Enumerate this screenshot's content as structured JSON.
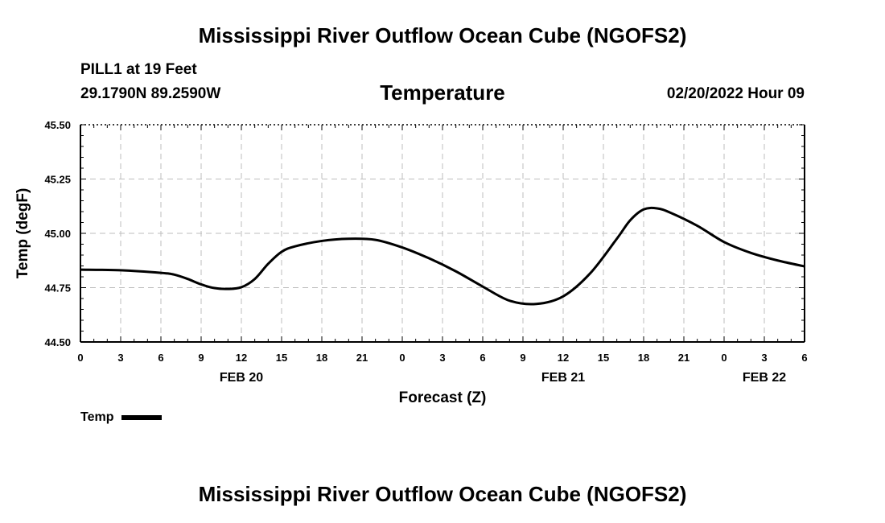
{
  "header": {
    "title": "Mississippi River Outflow Ocean Cube (NGOFS2)",
    "station": "PILL1 at 19 Feet",
    "coords": "29.1790N  89.2590W",
    "subtitle": "Temperature",
    "datetime": "02/20/2022 Hour 09"
  },
  "footer": {
    "title": "Mississippi River Outflow Ocean Cube (NGOFS2)"
  },
  "legend": {
    "label": "Temp"
  },
  "chart_data": {
    "type": "line",
    "title": "Temperature",
    "xlabel": "Forecast (Z)",
    "ylabel": "Temp (degF)",
    "xlim": [
      0,
      54
    ],
    "ylim": [
      44.5,
      45.5
    ],
    "grid": true,
    "x_ticks": [
      0,
      3,
      6,
      9,
      12,
      15,
      18,
      21,
      24,
      27,
      30,
      33,
      36,
      39,
      42,
      45,
      48,
      51,
      54
    ],
    "x_tick_labels": [
      "0",
      "3",
      "6",
      "9",
      "12",
      "15",
      "18",
      "21",
      "0",
      "3",
      "6",
      "9",
      "12",
      "15",
      "18",
      "21",
      "0",
      "3",
      "6"
    ],
    "y_ticks": [
      44.5,
      44.75,
      45.0,
      45.25,
      45.5
    ],
    "y_tick_labels": [
      "44.50",
      "44.75",
      "45.00",
      "45.25",
      "45.50"
    ],
    "date_labels": [
      {
        "x": 12,
        "label": "FEB 20"
      },
      {
        "x": 36,
        "label": "FEB 21"
      },
      {
        "x": 51,
        "label": "FEB 22"
      }
    ],
    "series": [
      {
        "name": "Temp",
        "color": "#000000",
        "x": [
          0,
          3,
          6,
          7,
          8,
          9,
          10,
          11,
          12,
          13,
          14,
          15,
          16,
          18,
          20,
          22,
          24,
          26,
          28,
          30,
          32,
          34,
          36,
          38,
          40,
          41,
          42,
          43,
          44,
          46,
          48,
          50,
          52,
          54
        ],
        "values": [
          44.833,
          44.83,
          44.818,
          44.81,
          44.79,
          44.765,
          44.748,
          44.744,
          44.752,
          44.79,
          44.86,
          44.915,
          44.94,
          44.965,
          44.975,
          44.97,
          44.935,
          44.885,
          44.825,
          44.755,
          44.69,
          44.675,
          44.71,
          44.815,
          44.975,
          45.06,
          45.11,
          45.115,
          45.095,
          45.035,
          44.96,
          44.91,
          44.875,
          44.848
        ]
      }
    ]
  }
}
